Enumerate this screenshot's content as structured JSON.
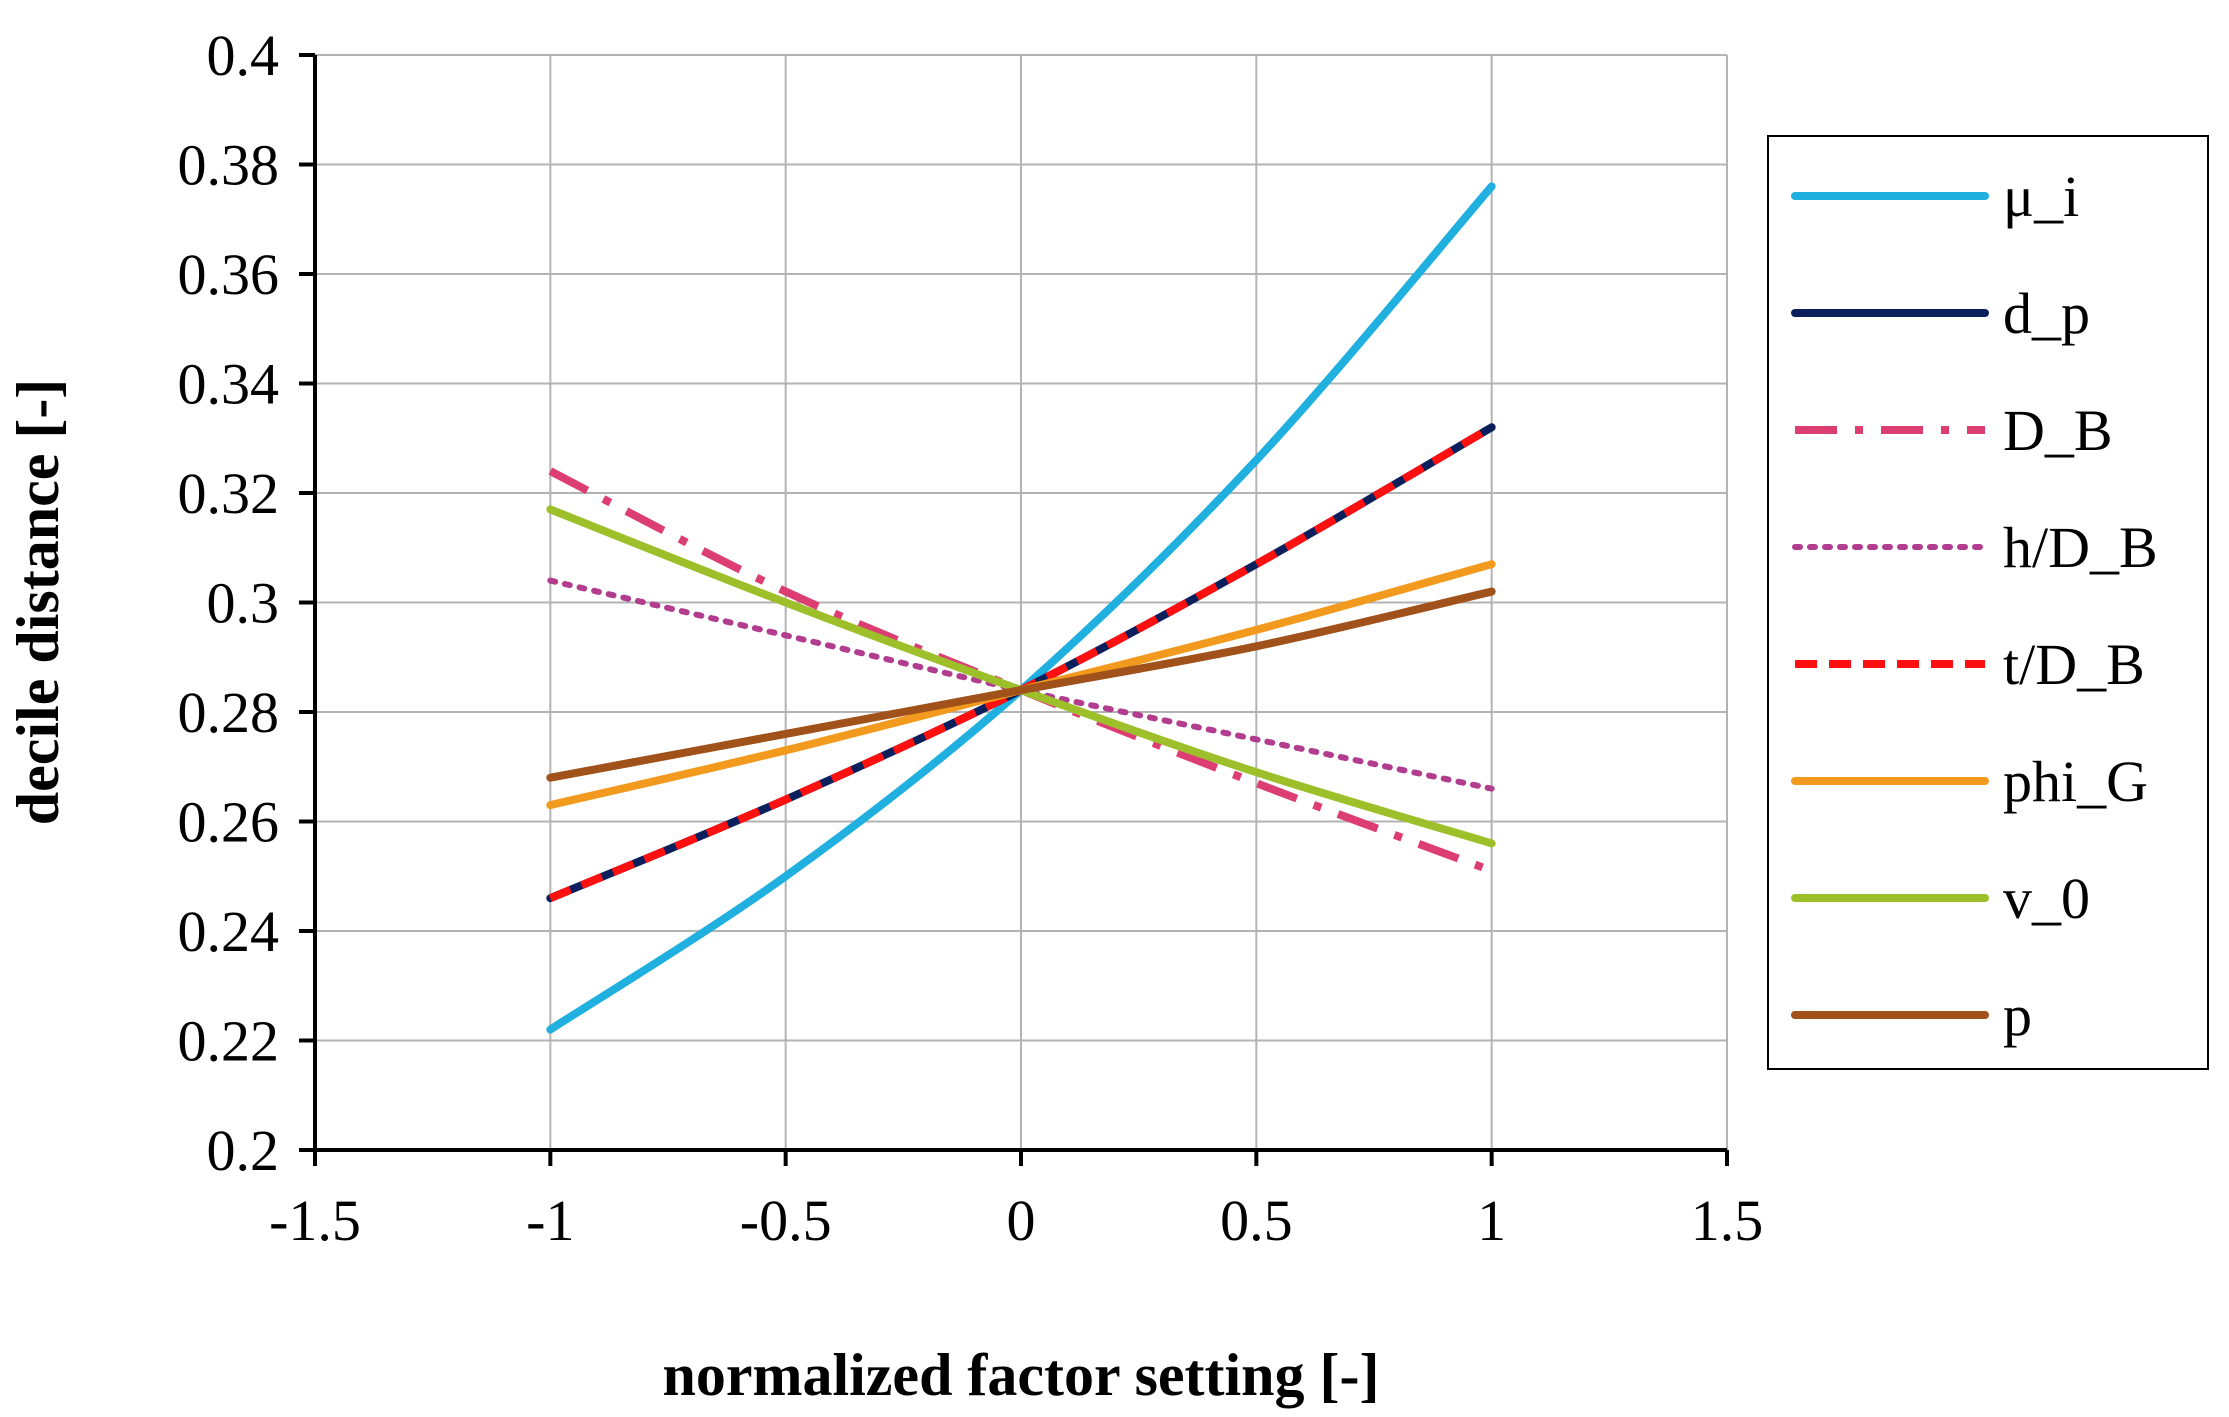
{
  "chart_data": {
    "type": "line",
    "title": "",
    "xlabel": "normalized factor setting [-]",
    "ylabel": "decile distance [-]",
    "xlim": [
      -1.5,
      1.5
    ],
    "ylim": [
      0.2,
      0.4
    ],
    "xticks": [
      -1.5,
      -1,
      -0.5,
      0,
      0.5,
      1,
      1.5
    ],
    "xtick_labels": [
      "-1.5",
      "-1",
      "-0.5",
      "0",
      "0.5",
      "1",
      "1.5"
    ],
    "yticks": [
      0.2,
      0.22,
      0.24,
      0.26,
      0.28,
      0.3,
      0.32,
      0.34,
      0.36,
      0.38,
      0.4
    ],
    "ytick_labels": [
      "0.2",
      "0.22",
      "0.24",
      "0.26",
      "0.28",
      "0.3",
      "0.32",
      "0.34",
      "0.36",
      "0.38",
      "0.4"
    ],
    "grid": true,
    "legend_position": "right",
    "x": [
      -1,
      -0.5,
      0,
      0.5,
      1
    ],
    "series": [
      {
        "name": "μ_i",
        "color": "#1FB0E0",
        "dash": "solid",
        "values": [
          0.222,
          0.25,
          0.284,
          0.326,
          0.376
        ]
      },
      {
        "name": "d_p",
        "color": "#0A1F5C",
        "dash": "solid",
        "values": [
          0.246,
          0.264,
          0.284,
          0.307,
          0.332
        ]
      },
      {
        "name": "D_B",
        "color": "#DD3E72",
        "dash": "dashdot",
        "values": [
          0.324,
          0.302,
          0.284,
          0.267,
          0.251
        ]
      },
      {
        "name": "h/D_B",
        "color": "#B23C8E",
        "dash": "dotted",
        "values": [
          0.304,
          0.294,
          0.284,
          0.275,
          0.266
        ]
      },
      {
        "name": "t/D_B",
        "color": "#FF1010",
        "dash": "dashed",
        "values": [
          0.246,
          0.264,
          0.284,
          0.307,
          0.332
        ]
      },
      {
        "name": "phi_G",
        "color": "#F29A1E",
        "dash": "solid",
        "values": [
          0.263,
          0.273,
          0.284,
          0.295,
          0.307
        ]
      },
      {
        "name": "v_0",
        "color": "#9DC02A",
        "dash": "solid",
        "values": [
          0.317,
          0.3,
          0.284,
          0.269,
          0.256
        ]
      },
      {
        "name": "p",
        "color": "#A0521A",
        "dash": "solid",
        "values": [
          0.268,
          0.276,
          0.284,
          0.292,
          0.302
        ]
      }
    ]
  }
}
